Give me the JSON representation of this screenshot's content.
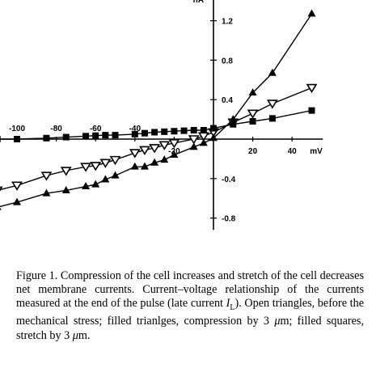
{
  "chart_data": {
    "type": "line",
    "title": "",
    "xlabel": "mV",
    "ylabel": "nA",
    "xlim": [
      -110,
      54
    ],
    "ylim": [
      -0.92,
      1.45
    ],
    "x_ticks": [
      -100,
      -80,
      -60,
      -40,
      -20,
      20,
      40
    ],
    "x_tick_labels": [
      "-100",
      "-80",
      "-60",
      "-40",
      "-20",
      "20",
      "40"
    ],
    "y_ticks": [
      1.2,
      0.8,
      0.4,
      -0.4,
      -0.8
    ],
    "y_tick_labels": [
      "1.2",
      "0.8",
      "0.4",
      "-0.4",
      "-0.8"
    ],
    "grid": false,
    "legend": "none",
    "series": [
      {
        "marker": "open-triangle-down",
        "x": [
          -110,
          -100,
          -85,
          -75,
          -65,
          -60,
          -55,
          -50,
          -40,
          -35,
          -30,
          -25,
          -20,
          -10,
          -5,
          0,
          10,
          20,
          30,
          50
        ],
        "y": [
          -0.52,
          -0.47,
          -0.37,
          -0.32,
          -0.28,
          -0.27,
          -0.24,
          -0.21,
          -0.14,
          -0.11,
          -0.09,
          -0.06,
          -0.04,
          0.0,
          0.03,
          0.07,
          0.17,
          0.26,
          0.36,
          0.52
        ]
      },
      {
        "marker": "filled-triangle-up",
        "x": [
          -110,
          -100,
          -85,
          -75,
          -65,
          -60,
          -55,
          -50,
          -40,
          -35,
          -30,
          -25,
          -20,
          -10,
          -5,
          0,
          10,
          20,
          30,
          50
        ],
        "y": [
          -0.69,
          -0.64,
          -0.55,
          -0.52,
          -0.48,
          -0.46,
          -0.41,
          -0.37,
          -0.28,
          -0.28,
          -0.24,
          -0.21,
          -0.16,
          -0.08,
          -0.04,
          0.01,
          0.2,
          0.47,
          0.67,
          1.27
        ]
      },
      {
        "marker": "filled-square",
        "x": [
          -110,
          -100,
          -85,
          -75,
          -65,
          -60,
          -55,
          -50,
          -40,
          -35,
          -30,
          -25,
          -20,
          -15,
          -10,
          -5,
          0,
          10,
          20,
          30,
          50
        ],
        "y": [
          0.0,
          0.0,
          0.01,
          0.02,
          0.03,
          0.035,
          0.04,
          0.04,
          0.05,
          0.06,
          0.07,
          0.075,
          0.08,
          0.085,
          0.09,
          0.09,
          0.11,
          0.15,
          0.18,
          0.21,
          0.29
        ]
      }
    ]
  },
  "caption": {
    "segments": [
      {
        "style": "normal",
        "text": "Figure 1. Compression of the cell increases and stretch of the cell decreases net membrane currents. Current–voltage relationship of the currents measured at the end of the pulse (late current "
      },
      {
        "style": "italic",
        "text": "I"
      },
      {
        "style": "sub",
        "text": "L"
      },
      {
        "style": "normal",
        "text": "). Open triangles, before the mechanical stress; filled trianlges, compression by 3 "
      },
      {
        "style": "italic",
        "text": "μ"
      },
      {
        "style": "normal",
        "text": "m; filled squares, stretch by 3 "
      },
      {
        "style": "italic",
        "text": "μ"
      },
      {
        "style": "normal",
        "text": "m."
      }
    ]
  },
  "colors": {
    "ink": "#000000",
    "background": "#ffffff"
  }
}
